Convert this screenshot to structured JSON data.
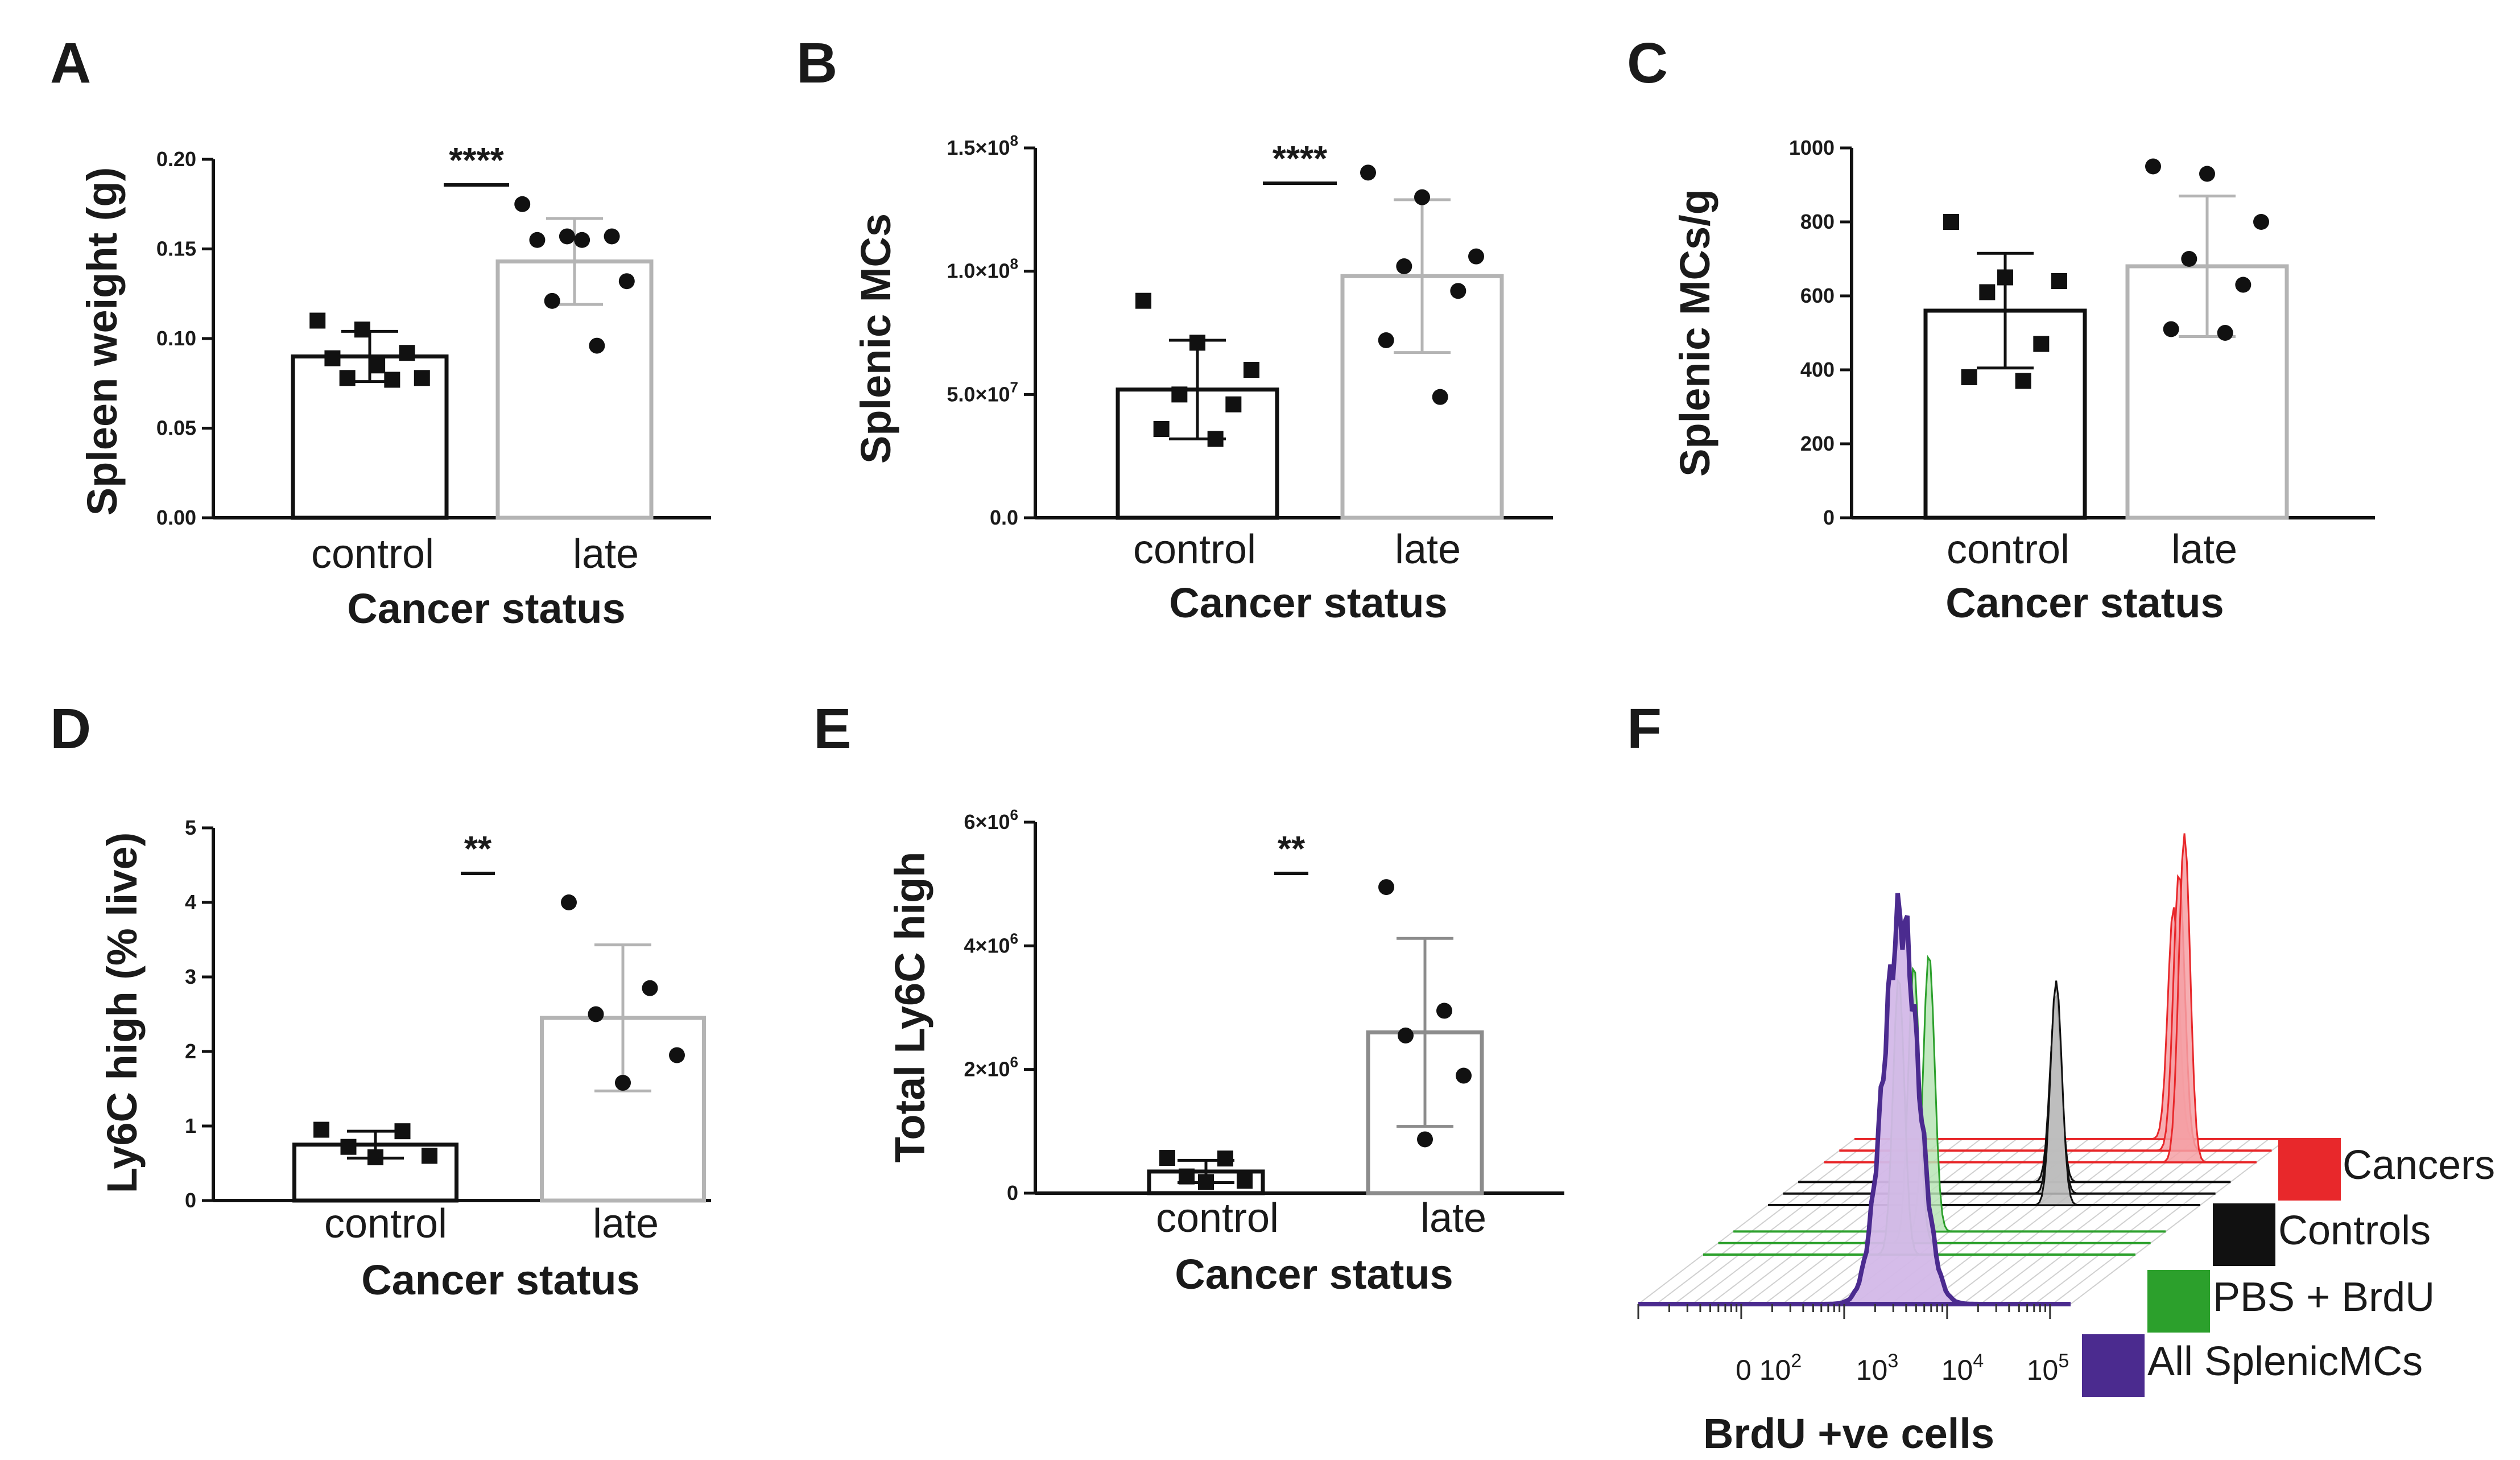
{
  "figure": {
    "panel_labels": [
      "A",
      "B",
      "C",
      "D",
      "E",
      "F"
    ]
  },
  "chart_data": [
    {
      "panel": "A",
      "type": "bar",
      "xlabel": "Cancer status",
      "ylabel": "Spleen weight (g)",
      "ylim": [
        0,
        0.2
      ],
      "yticks": [
        0,
        0.05,
        0.1,
        0.15,
        0.2
      ],
      "ytick_labels": [
        "0.00",
        "0.05",
        "0.10",
        "0.15",
        "0.20"
      ],
      "categories": [
        "control",
        "late"
      ],
      "means": [
        0.09,
        0.143
      ],
      "sd": [
        0.014,
        0.024
      ],
      "points": [
        [
          0.11,
          0.105,
          0.092,
          0.089,
          0.085,
          0.078,
          0.078,
          0.077
        ],
        [
          0.175,
          0.157,
          0.157,
          0.155,
          0.155,
          0.132,
          0.121,
          0.096
        ]
      ],
      "markers": [
        "square",
        "circle"
      ],
      "bar_colors": [
        "#111111",
        "#b4b4b4"
      ],
      "significance": "****"
    },
    {
      "panel": "B",
      "type": "bar",
      "xlabel": "Cancer status",
      "ylabel": "Splenic MCs",
      "ylim": [
        0,
        150000000
      ],
      "yticks": [
        0,
        50000000,
        100000000,
        150000000
      ],
      "ytick_labels": [
        "0.0",
        "5.0×10",
        "1.0×10",
        "1.5×10"
      ],
      "ytick_exponents": [
        "",
        "7",
        "8",
        "8"
      ],
      "categories": [
        "control",
        "late"
      ],
      "means": [
        52000000,
        98000000
      ],
      "sd": [
        20000000,
        31000000
      ],
      "points": [
        [
          88000000,
          71000000,
          60000000,
          50000000,
          46000000,
          36000000,
          32000000
        ],
        [
          140000000,
          130000000,
          106000000,
          102000000,
          92000000,
          72000000,
          49000000
        ]
      ],
      "markers": [
        "square",
        "circle"
      ],
      "bar_colors": [
        "#111111",
        "#b4b4b4"
      ],
      "significance": "****"
    },
    {
      "panel": "C",
      "type": "bar",
      "xlabel": "Cancer status",
      "ylabel": "Splenic MCs/g",
      "ylim": [
        0,
        1000
      ],
      "yticks": [
        0,
        200,
        400,
        600,
        800,
        1000
      ],
      "ytick_labels": [
        "0",
        "200",
        "400",
        "600",
        "800",
        "1000"
      ],
      "categories": [
        "control",
        "late"
      ],
      "means": [
        560,
        680
      ],
      "sd": [
        155,
        190
      ],
      "points": [
        [
          800,
          650,
          640,
          610,
          470,
          380,
          370
        ],
        [
          950,
          930,
          800,
          700,
          630,
          510,
          500
        ]
      ],
      "markers": [
        "square",
        "circle"
      ],
      "bar_colors": [
        "#111111",
        "#b4b4b4"
      ],
      "significance": ""
    },
    {
      "panel": "D",
      "type": "bar",
      "xlabel": "Cancer status",
      "ylabel": "Ly6C high (% live)",
      "ylim": [
        0,
        5
      ],
      "yticks": [
        0,
        1,
        2,
        3,
        4,
        5
      ],
      "ytick_labels": [
        "0",
        "1",
        "2",
        "3",
        "4",
        "5"
      ],
      "categories": [
        "control",
        "late"
      ],
      "means": [
        0.75,
        2.45
      ],
      "sd": [
        0.18,
        0.98
      ],
      "points": [
        [
          0.95,
          0.93,
          0.72,
          0.6,
          0.58
        ],
        [
          4.0,
          2.85,
          2.5,
          1.95,
          1.58
        ]
      ],
      "markers": [
        "square",
        "circle"
      ],
      "bar_colors": [
        "#111111",
        "#b4b4b4"
      ],
      "significance": "**"
    },
    {
      "panel": "E",
      "type": "bar",
      "xlabel": "Cancer status",
      "ylabel": "Total Ly6C high",
      "ylim": [
        0,
        6000000
      ],
      "yticks": [
        0,
        2000000,
        4000000,
        6000000
      ],
      "ytick_labels": [
        "0",
        "2×10",
        "4×10",
        "6×10"
      ],
      "ytick_exponents": [
        "",
        "6",
        "6",
        "6"
      ],
      "categories": [
        "control",
        "late"
      ],
      "means": [
        350000,
        2600000
      ],
      "sd": [
        180000,
        1520000
      ],
      "points": [
        [
          570000,
          560000,
          270000,
          200000,
          180000
        ],
        [
          4950000,
          2950000,
          2550000,
          1900000,
          870000
        ]
      ],
      "markers": [
        "square",
        "circle"
      ],
      "bar_colors": [
        "#111111",
        "#8c8c8c"
      ],
      "significance": "**"
    },
    {
      "panel": "F",
      "type": "area",
      "xlabel": "BrdU +ve cells",
      "x_scale": "log",
      "xtick_labels": [
        "0",
        "10",
        "10",
        "10",
        "10"
      ],
      "xtick_exponents": [
        "",
        "2",
        "3",
        "4",
        "5"
      ],
      "series": [
        {
          "name": "Cancers",
          "color": "#e8282b",
          "fill": "#f4a0a4",
          "peaks": [
            4.1,
            4.3,
            4.5
          ],
          "relative_heights": [
            0.6,
            0.72,
            0.85
          ]
        },
        {
          "name": "Controls",
          "color": "#111111",
          "fill": "#bdbdbd",
          "peaks": [
            3.5,
            3.65,
            3.8
          ],
          "relative_heights": [
            0.46,
            0.52,
            0.58
          ]
        },
        {
          "name": "PBS + BrdU",
          "color": "#2ca02c",
          "fill": "#b7e4b5",
          "peaks": [
            2.9
          ],
          "relative_heights": [
            0.72
          ]
        },
        {
          "name": "All SplenicMCs",
          "color": "#4b2b8f",
          "fill": "#d3b8e8",
          "peaks": [
            3.55
          ],
          "relative_heights": [
            1.0
          ]
        }
      ]
    }
  ]
}
